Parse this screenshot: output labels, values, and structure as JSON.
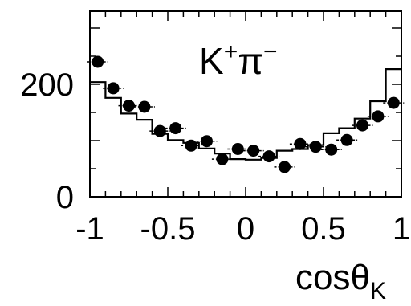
{
  "chart_data": {
    "type": "scatter",
    "annotation": {
      "text": "K",
      "sup": "+",
      "pi": "π",
      "pisup": "−"
    },
    "xlabel": {
      "text": "cosθ",
      "sub": "K"
    },
    "ylabel": "",
    "xlim": [
      -1,
      1
    ],
    "ylim": [
      0,
      330
    ],
    "grid": false,
    "x_ticks": [
      {
        "v": -1,
        "label": "-1"
      },
      {
        "v": -0.5,
        "label": "-0.5"
      },
      {
        "v": 0,
        "label": "0"
      },
      {
        "v": 0.5,
        "label": "0.5"
      },
      {
        "v": 1,
        "label": "1"
      }
    ],
    "y_ticks": [
      {
        "v": 0,
        "label": "0"
      },
      {
        "v": 200,
        "label": "200"
      }
    ],
    "series": [
      {
        "kind": "points",
        "x": [
          -0.95,
          -0.85,
          -0.75,
          -0.65,
          -0.55,
          -0.45,
          -0.35,
          -0.25,
          -0.15,
          -0.05,
          0.05,
          0.15,
          0.25,
          0.35,
          0.45,
          0.55,
          0.65,
          0.75,
          0.85,
          0.95
        ],
        "y": [
          240,
          193,
          162,
          160,
          117,
          122,
          91,
          99,
          67,
          85,
          82,
          72,
          53,
          94,
          89,
          84,
          101,
          127,
          143,
          167
        ],
        "err": [
          10,
          9,
          9,
          9,
          8,
          8,
          7,
          7,
          6,
          7,
          7,
          6,
          6,
          7,
          7,
          7,
          7,
          8,
          8,
          9
        ]
      },
      {
        "kind": "step-histogram",
        "x": [
          -0.95,
          -0.85,
          -0.75,
          -0.65,
          -0.55,
          -0.45,
          -0.35,
          -0.25,
          -0.15,
          -0.05,
          0.05,
          0.15,
          0.25,
          0.35,
          0.45,
          0.55,
          0.65,
          0.75,
          0.85,
          0.95
        ],
        "y": [
          204,
          176,
          148,
          137,
          112,
          101,
          96,
          86,
          77,
          67,
          66,
          69,
          82,
          85,
          92,
          113,
          122,
          139,
          170,
          227
        ]
      }
    ]
  }
}
